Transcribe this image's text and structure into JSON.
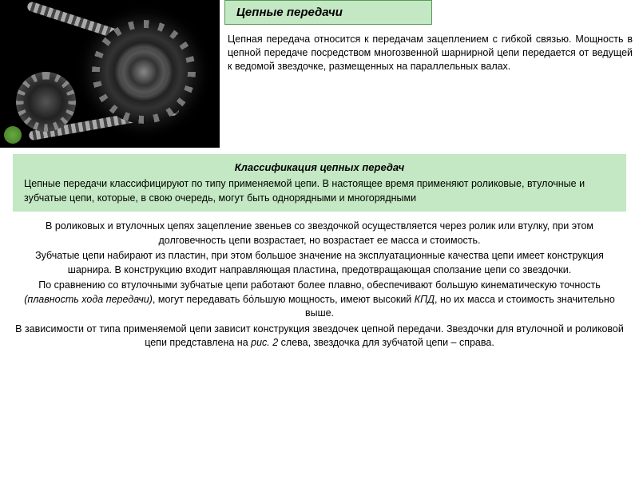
{
  "title": "Цепные передачи",
  "intro": "Цепная передача относится к передачам зацеплением с гибкой связью. Мощность в цепной передаче посредством многозвенной шарнирной цепи передается от ведущей к ведомой звездочке, размещенных на параллельных валах.",
  "classification": {
    "heading": "Классификация цепных передач",
    "text": "Цепные передачи классифицируют по типу применяемой цепи. В настоящее время применяют роликовые, втулочные и зубчатые цепи, которые, в свою очередь, могут быть однорядными и многорядными"
  },
  "body": {
    "p1": "В роликовых и втулочных цепях зацепление звеньев со звездочкой осуществляется через ролик или втулку, при этом долговечность цепи возрастает, но возрастает ее масса и стоимость.",
    "p2": "Зубчатые цепи набирают из пластин, при этом большое значение на эксплуатационные качества цепи имеет конструкция шарнира. В конструкцию входит направляющая пластина, предотвращающая сползание цепи со звездочки.",
    "p3a": "По сравнению со втулочными зубчатые цепи работают более плавно, обеспечивают большую кинематическую точность ",
    "p3_ital": "(плавность хода передачи)",
    "p3b": ", могут передавать бо́льшую мощность, имеют высокий ",
    "p3_kpd": "КПД",
    "p3c": ", но их масса и стоимость значительно выше.",
    "p4a": "В зависимости от типа применяемой цепи зависит конструкция звездочек цепной передачи. Звездочки для втулочной и роликовой цепи представлена на ",
    "p4_fig": "рис. 2",
    "p4b": " слева, звездочка для зубчатой цепи – справа.",
    "p5": ""
  },
  "colors": {
    "box_bg": "#c3e8c3",
    "box_border": "#5a9a5a",
    "page_bg": "#ffffff",
    "text": "#000000"
  }
}
